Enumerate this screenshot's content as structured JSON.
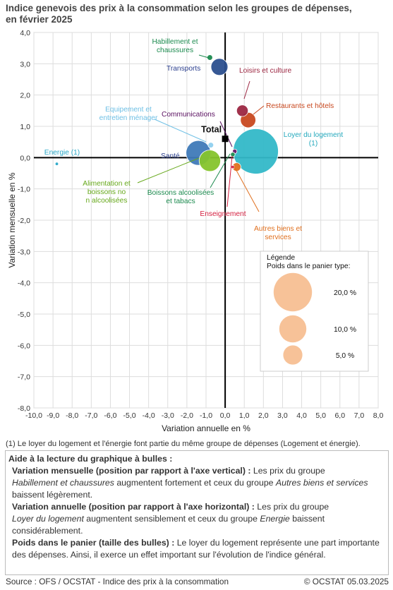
{
  "title_line1": "Indice genevois des prix à la consommation selon les groupes de dépenses,",
  "title_line2": "en février 2025",
  "chart_data": {
    "type": "bubble",
    "xlabel": "Variation annuelle en %",
    "ylabel": "Variation mensuelle en %",
    "xlim": [
      -10,
      8
    ],
    "ylim": [
      -8,
      4
    ],
    "x_ticks": [
      "-10,0",
      "-9,0",
      "-8,0",
      "-7,0",
      "-6,0",
      "-5,0",
      "-4,0",
      "-3,0",
      "-2,0",
      "-1,0",
      "0,0",
      "1,0",
      "2,0",
      "3,0",
      "4,0",
      "5,0",
      "6,0",
      "7,0",
      "8,0"
    ],
    "y_ticks": [
      "4,0",
      "3,0",
      "2,0",
      "1,0",
      "0,0",
      "-1,0",
      "-2,0",
      "-3,0",
      "-4,0",
      "-5,0",
      "-6,0",
      "-7,0",
      "-8,0"
    ],
    "grid": true,
    "series": [
      {
        "key": "habillement",
        "label": "Habillement et chaussures",
        "x": -0.8,
        "y": 3.2,
        "weight": 0.3,
        "color": "#1b8a4e",
        "label_color": "#1b8a4e"
      },
      {
        "key": "transports",
        "label": "Transports",
        "x": -0.3,
        "y": 2.9,
        "weight": 2.8,
        "color": "#2b4f8e",
        "label_color": "#2b3f8e"
      },
      {
        "key": "loisirs",
        "label": "Loisirs et culture",
        "x": 0.9,
        "y": 1.5,
        "weight": 1.3,
        "color": "#9c2742",
        "label_color": "#9c2742"
      },
      {
        "key": "restaurants",
        "label": "Restaurants et hôtels",
        "x": 1.2,
        "y": 1.2,
        "weight": 2.3,
        "color": "#c8481f",
        "label_color": "#c8481f"
      },
      {
        "key": "communications",
        "label": "Communications",
        "x": 0.5,
        "y": 0.2,
        "weight": 0.2,
        "color": "#6a1b6a",
        "label_color": "#5a1060"
      },
      {
        "key": "loyer",
        "label": "Loyer du logement (1)",
        "x": 1.6,
        "y": 0.2,
        "weight": 20.0,
        "color": "#33b8c8",
        "label_color": "#25a9bd"
      },
      {
        "key": "equipement",
        "label": "Equipement et entretien ménager",
        "x": -0.75,
        "y": 0.4,
        "weight": 0.3,
        "color": "#8fd0ef",
        "label_color": "#6fc0e5"
      },
      {
        "key": "sante",
        "label": "Santé",
        "x": -1.4,
        "y": 0.15,
        "weight": 6.0,
        "color": "#3f7ab8",
        "label_color": "#2b3f8e"
      },
      {
        "key": "energie",
        "label": "Energie (1)",
        "x": -8.8,
        "y": -0.2,
        "weight": 0.1,
        "color": "#2aa8c8",
        "label_color": "#2aa8c8"
      },
      {
        "key": "alimentation",
        "label": "Alimentation et boissons non alcoolisées",
        "x": -0.8,
        "y": -0.1,
        "weight": 4.5,
        "color": "#86c42c",
        "label_color": "#66a81a"
      },
      {
        "key": "boissons",
        "label": "Boissons alcoolisées et tabacs",
        "x": 0.4,
        "y": 0.1,
        "weight": 0.2,
        "color": "#1b8a4e",
        "label_color": "#1b8a4e"
      },
      {
        "key": "enseignement",
        "label": "Enseignement",
        "x": 0.4,
        "y": -0.3,
        "weight": 0.01,
        "color": "#d42040",
        "label_color": "#d42040"
      },
      {
        "key": "autres",
        "label": "Autres biens et services",
        "x": 0.6,
        "y": -0.3,
        "weight": 0.7,
        "color": "#e0701f",
        "label_color": "#e0701f"
      }
    ],
    "total": {
      "label": "Total",
      "x": 0.0,
      "y": 0.6
    },
    "legend": {
      "title": "Légende",
      "subtitle": "Poids dans le panier type:",
      "placement": "bottom-right",
      "entries": [
        {
          "label": "20,0 %",
          "weight": 20.0
        },
        {
          "label": "10,0 %",
          "weight": 10.0
        },
        {
          "label": "5,0 %",
          "weight": 5.0
        }
      ],
      "color": "#f7c298"
    }
  },
  "footnote": "(1) Le loyer du logement et l'énergie font partie du même groupe de dépenses (Logement et énergie).",
  "help": {
    "title": "Aide à la lecture du graphique à bulles :",
    "s1_head": "Variation mensuelle (position par rapport à l'axe vertical) :",
    "s1_t1": " Les prix du groupe",
    "s1_i1": "Habillement et chaussures",
    "s1_t2": " augmentent fortement et ceux du groupe ",
    "s1_i2": "Autres biens et services",
    "s1_t3": " baissent légèrement.",
    "s2_head": "Variation annuelle (position par rapport à l'axe horizontal) :",
    "s2_t1": " Les prix du groupe",
    "s2_i1": "Loyer du logement",
    "s2_t2": " augmentent sensiblement et ceux du groupe ",
    "s2_i2": "Energie",
    "s2_t3": " baissent considérablement.",
    "s3_head": "Poids dans le panier (taille des bulles) :",
    "s3_t1": " Le loyer du logement représente une part importante des dépenses. Ainsi, il exerce un effet important sur l'évolution de l'indice général."
  },
  "source": "Source : OFS / OCSTAT - Indice des prix à la consommation",
  "copyright": "© OCSTAT 05.03.2025"
}
